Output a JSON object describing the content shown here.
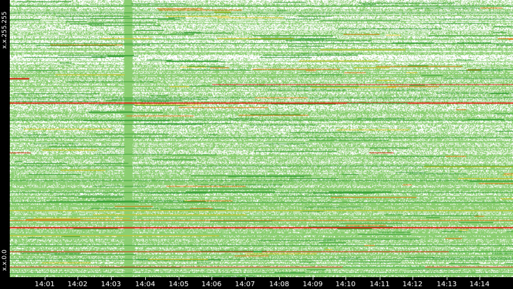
{
  "y_axis": {
    "top_label": "x.x.255.255",
    "bottom_label": "x.x.0.0"
  },
  "x_axis": {
    "labels": [
      "14:01",
      "14:02",
      "14:03",
      "14:04",
      "14:05",
      "14:06",
      "14:07",
      "14:08",
      "14:09",
      "14:10",
      "14:11",
      "14:12",
      "14:13",
      "14:14"
    ]
  },
  "colors": {
    "background": "#000000",
    "plot_fill": "#8ccf72",
    "dot_white": "#ffffff",
    "line_green": "#3aa23a",
    "line_yellow": "#d9c21a",
    "line_orange": "#e07a10",
    "line_red": "#d42a10",
    "axis_text": "#ffffff"
  }
}
